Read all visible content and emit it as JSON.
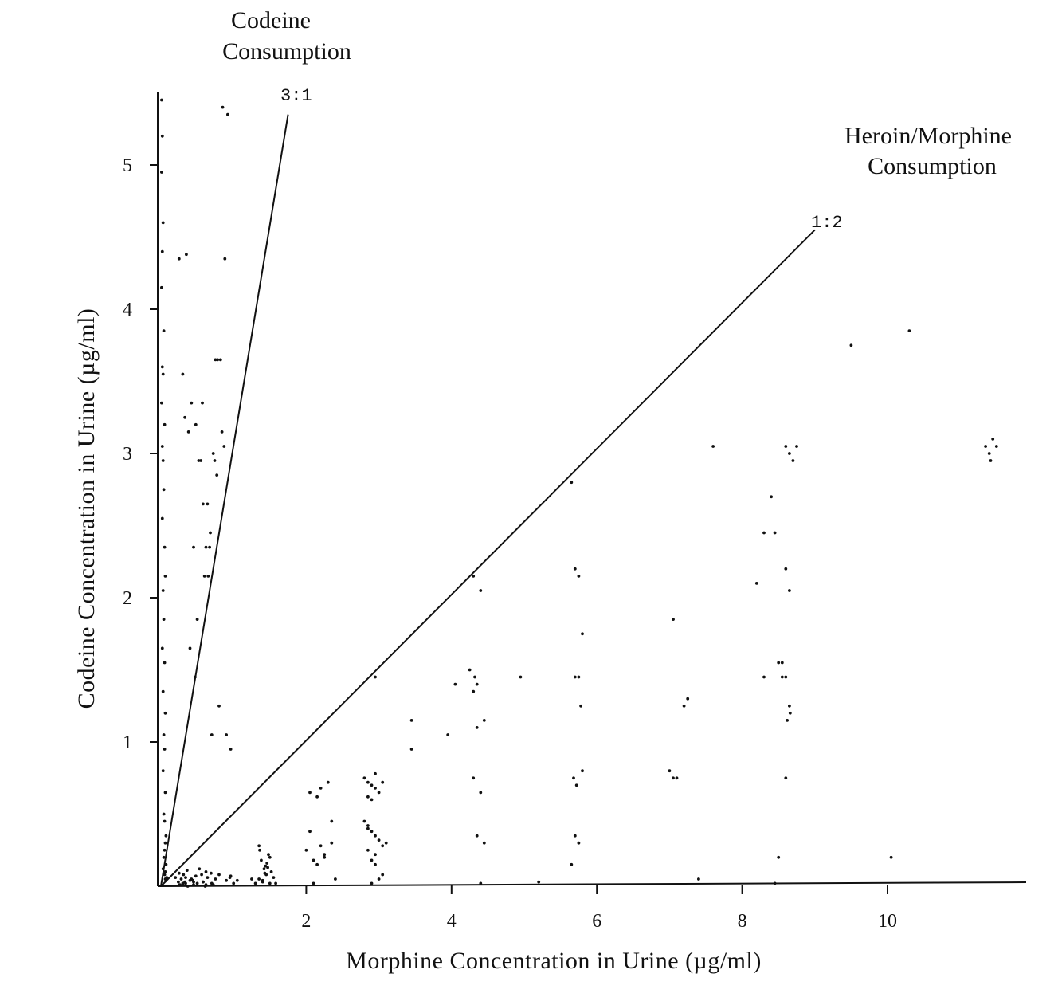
{
  "chart_data": {
    "type": "scatter",
    "title": "",
    "xlabel": "Morphine Concentration in Urine (µg/ml)",
    "ylabel": "Codeine Concentration in Urine (µg/ml)",
    "xlim": [
      0,
      11.8
    ],
    "ylim": [
      0,
      5.5
    ],
    "x_ticks": [
      2,
      4,
      6,
      8,
      10
    ],
    "y_ticks": [
      1,
      2,
      3,
      4,
      5
    ],
    "grid": false,
    "legend": "none",
    "annotations": {
      "codeine_region": [
        "Codeine",
        "Consumption"
      ],
      "heroin_region": [
        "Heroin/Morphine",
        "Consumption"
      ],
      "ratio_3_1": "3:1",
      "ratio_1_2": "1:2"
    },
    "reference_lines": [
      {
        "label": "3:1",
        "from": [
          0,
          0
        ],
        "to": [
          1.75,
          5.35
        ]
      },
      {
        "label": "1:2",
        "from": [
          0,
          0
        ],
        "to": [
          9.0,
          4.55
        ]
      }
    ],
    "series": [
      {
        "x": [
          0.01,
          0.02,
          0.01,
          0.03,
          0.02,
          0.01,
          0.04,
          0.02,
          0.03,
          0.01,
          0.05,
          0.02,
          0.03,
          0.04,
          0.02,
          0.05,
          0.06,
          0.03,
          0.04,
          0.02,
          0.05,
          0.03,
          0.06,
          0.04,
          0.05,
          0.03,
          0.06,
          0.04,
          0.05,
          0.07,
          0.06,
          0.05,
          0.04,
          0.07,
          0.03,
          0.06,
          0.05,
          0.08,
          0.06,
          0.07,
          0.25,
          0.35,
          0.3,
          0.42,
          0.48,
          0.38,
          0.55,
          0.62,
          0.58,
          0.68,
          0.72,
          0.65,
          0.78,
          0.82,
          0.75,
          0.88,
          0.92,
          0.85,
          0.45,
          0.52,
          0.6,
          0.7,
          0.8,
          0.9,
          0.4,
          0.5,
          0.64,
          0.74,
          0.84,
          0.96,
          0.33,
          0.57,
          0.67,
          0.77,
          0.87,
          0.47,
          1.35,
          1.4,
          1.45,
          1.5,
          1.42,
          1.38,
          1.48,
          1.55,
          1.35,
          1.44,
          1.52,
          1.46,
          1.4,
          1.58,
          1.36,
          1.5,
          1.43,
          1.47,
          1.3,
          1.25,
          0.28,
          0.3,
          0.4,
          0.48,
          0.5,
          0.42,
          0.56,
          0.58,
          0.64,
          0.7,
          0.75,
          0.8,
          0.9,
          0.95,
          1.0,
          1.05,
          0.62,
          0.33,
          0.45,
          0.58,
          0.72,
          0.25,
          0.36,
          0.53,
          0.62,
          0.2,
          0.24,
          0.3,
          0.37,
          0.45,
          0.31,
          0.44,
          0.34,
          0.69,
          0.96,
          0.26,
          0.61,
          0.34,
          2.05,
          2.15,
          2.2,
          2.3,
          2.2,
          2.35,
          2.25,
          2.1,
          2.0,
          2.05,
          2.15,
          2.25,
          2.35,
          2.4,
          2.1,
          2.8,
          2.85,
          2.9,
          2.95,
          3.0,
          2.85,
          2.9,
          2.95,
          3.05,
          2.8,
          2.85,
          2.9,
          2.95,
          3.0,
          3.1,
          2.85,
          2.95,
          3.05,
          2.9,
          2.95,
          2.85,
          3.0,
          2.9,
          3.05,
          2.95,
          3.45,
          3.45,
          3.95,
          4.05,
          4.3,
          4.32,
          4.25,
          4.35,
          4.3,
          4.4,
          4.45,
          4.35,
          4.3,
          4.4,
          4.35,
          4.45,
          4.4,
          4.95,
          5.2,
          5.65,
          5.7,
          5.75,
          5.8,
          5.7,
          5.75,
          5.78,
          5.68,
          5.72,
          5.8,
          5.7,
          5.75,
          5.65,
          7.0,
          7.05,
          7.05,
          7.1,
          7.2,
          7.25,
          7.4,
          7.6,
          8.2,
          8.3,
          8.4,
          8.45,
          8.5,
          8.55,
          8.6,
          8.65,
          8.6,
          8.55,
          8.65,
          8.6,
          8.7,
          8.65,
          8.6,
          8.5,
          8.45,
          8.3,
          8.75,
          8.62,
          8.66,
          9.5,
          10.05,
          10.3,
          11.35,
          11.4,
          11.45,
          11.5,
          11.42
        ],
        "y": [
          5.45,
          5.2,
          4.95,
          4.6,
          4.4,
          4.15,
          3.85,
          3.6,
          3.55,
          3.35,
          3.2,
          3.05,
          2.95,
          2.75,
          2.55,
          2.35,
          2.15,
          2.05,
          1.85,
          1.65,
          1.55,
          1.35,
          1.2,
          1.05,
          0.95,
          0.8,
          0.65,
          0.5,
          0.45,
          0.35,
          0.3,
          0.25,
          0.2,
          0.15,
          0.12,
          0.1,
          0.08,
          0.06,
          0.05,
          0.04,
          4.35,
          4.38,
          3.55,
          3.35,
          3.2,
          3.15,
          2.95,
          2.35,
          2.65,
          2.45,
          3.0,
          2.15,
          3.65,
          3.65,
          3.65,
          4.35,
          5.35,
          5.4,
          2.35,
          2.95,
          2.15,
          1.05,
          1.25,
          1.05,
          1.65,
          1.85,
          2.65,
          2.95,
          3.15,
          0.95,
          3.25,
          3.35,
          2.35,
          2.85,
          3.05,
          1.45,
          0.05,
          0.03,
          0.08,
          0.02,
          0.12,
          0.18,
          0.22,
          0.06,
          0.28,
          0.14,
          0.1,
          0.16,
          0.04,
          0.02,
          0.25,
          0.2,
          0.09,
          0.13,
          0.02,
          0.05,
          0.05,
          0.02,
          0.04,
          0.07,
          0.02,
          0.05,
          0.08,
          0.03,
          0.06,
          0.02,
          0.05,
          0.08,
          0.04,
          0.06,
          0.02,
          0.04,
          0.01,
          0.03,
          0.01,
          0.03,
          0.01,
          0.09,
          0.11,
          0.12,
          0.1,
          0.06,
          0.03,
          0.01,
          0.0,
          0.03,
          0.08,
          0.04,
          0.02,
          0.09,
          0.07,
          0.01,
          0.0,
          0.06,
          0.65,
          0.62,
          0.68,
          0.72,
          0.28,
          0.3,
          0.22,
          0.18,
          0.25,
          0.38,
          0.15,
          0.2,
          0.45,
          0.05,
          0.02,
          0.75,
          0.72,
          0.7,
          0.78,
          0.65,
          0.62,
          0.6,
          0.68,
          0.72,
          0.45,
          0.4,
          0.38,
          0.35,
          0.32,
          0.3,
          0.25,
          0.22,
          0.28,
          0.18,
          0.15,
          0.42,
          0.05,
          0.02,
          0.08,
          1.45,
          1.15,
          0.95,
          1.05,
          1.4,
          1.35,
          1.45,
          1.5,
          1.4,
          2.15,
          2.05,
          1.15,
          1.1,
          0.75,
          0.65,
          0.35,
          0.3,
          0.02,
          1.45,
          0.03,
          2.8,
          2.2,
          2.15,
          1.75,
          1.45,
          1.45,
          1.25,
          0.75,
          0.7,
          0.8,
          0.35,
          0.3,
          0.15,
          0.8,
          0.75,
          1.85,
          0.75,
          1.25,
          1.3,
          0.05,
          3.05,
          2.1,
          2.45,
          2.7,
          2.45,
          1.55,
          1.45,
          2.2,
          2.05,
          1.45,
          1.55,
          3.0,
          3.05,
          2.95,
          1.25,
          0.75,
          0.2,
          0.02,
          1.45,
          3.05,
          1.15,
          1.2,
          3.75,
          0.2,
          3.85,
          3.05,
          3.0,
          3.1,
          3.05,
          2.95
        ]
      }
    ]
  }
}
